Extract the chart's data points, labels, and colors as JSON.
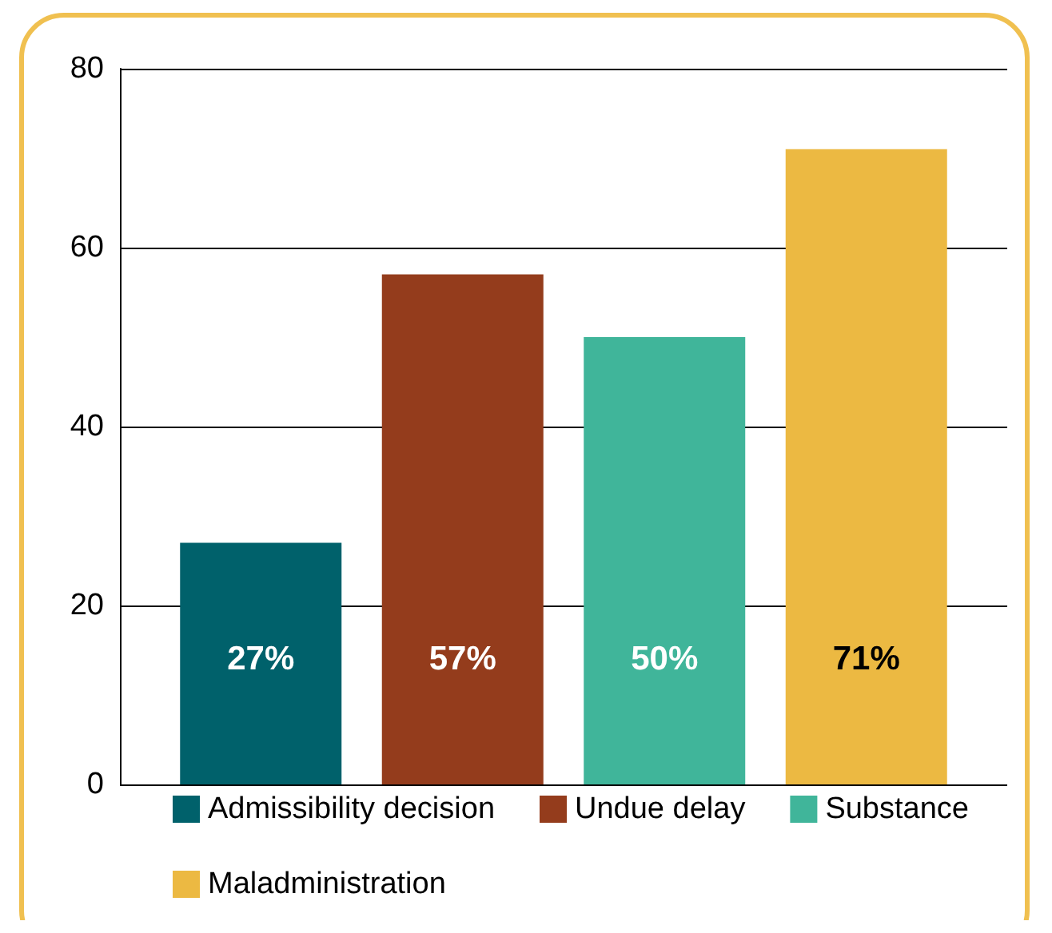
{
  "chart_data": {
    "type": "bar",
    "categories": [
      null
    ],
    "series": [
      {
        "name": "Admissibility decision",
        "color": "#00616b",
        "values": [
          27
        ],
        "value_labels": [
          "27%"
        ]
      },
      {
        "name": "Undue delay",
        "color": "#943c1c",
        "values": [
          57
        ],
        "value_labels": [
          "57%"
        ]
      },
      {
        "name": "Substance",
        "color": "#40b59a",
        "values": [
          50
        ],
        "value_labels": [
          "50%"
        ]
      },
      {
        "name": "Maladministration",
        "color": "#ecb942",
        "values": [
          71
        ],
        "value_labels": [
          "71%"
        ]
      }
    ],
    "ylim": [
      0,
      80
    ],
    "yticks": [
      0,
      20,
      40,
      60,
      80
    ],
    "grid": "y",
    "legend": "bottom"
  }
}
